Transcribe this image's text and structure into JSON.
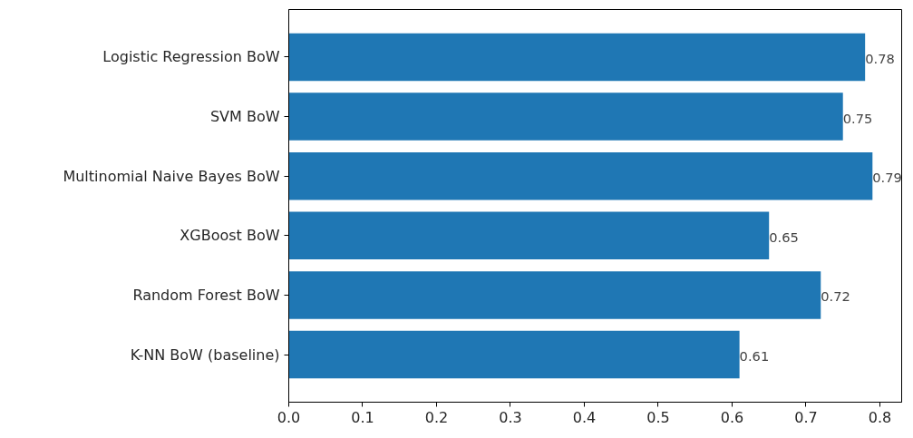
{
  "chart_data": {
    "type": "bar",
    "orientation": "horizontal",
    "categories": [
      "Logistic Regression BoW",
      "SVM BoW",
      "Multinomial Naive Bayes BoW",
      "XGBoost BoW",
      "Random Forest BoW",
      "K-NN BoW (baseline)"
    ],
    "values": [
      0.78,
      0.75,
      0.79,
      0.65,
      0.72,
      0.61
    ],
    "color": "#1f77b4",
    "xlim": [
      0,
      0.8295
    ],
    "xticks": [
      {
        "value": 0,
        "label": "0.0"
      },
      0.1,
      0.2,
      0.3,
      0.4,
      0.5,
      0.6,
      0.7,
      0.8
    ],
    "data_labels": true,
    "grid": false
  }
}
